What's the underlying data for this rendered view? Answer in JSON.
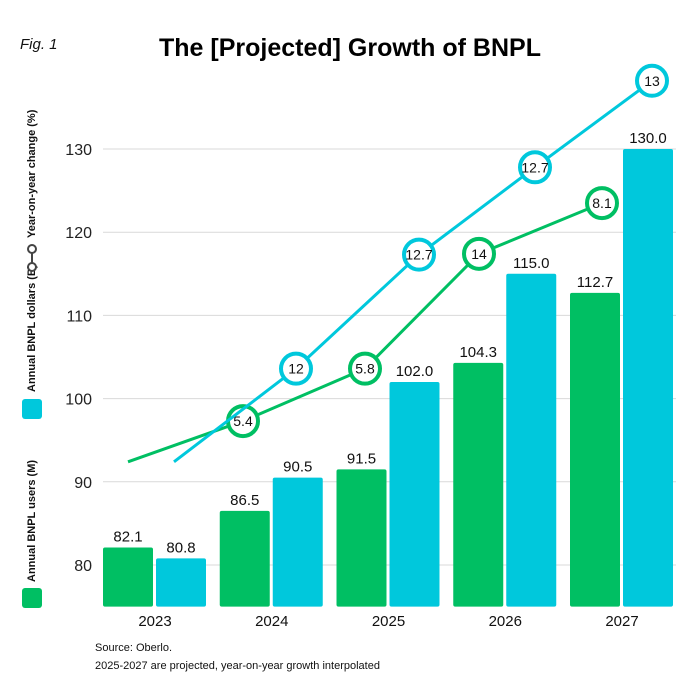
{
  "fig_label": "Fig. 1",
  "legend": {
    "users": "Annual BNPL users (M)",
    "dollars": "Annual BNPL dollars (B)",
    "yoy": "Year-on-year change (%)"
  },
  "colors": {
    "users": "#00bf63",
    "dollars": "#00c8dc",
    "grid": "#d9d9d9"
  },
  "footer": {
    "source": "Source: Oberlo.",
    "note": "2025-2027 are projected, year-on-year growth interpolated"
  },
  "chart_data": {
    "type": "bar",
    "title": "The [Projected] Growth of BNPL",
    "categories": [
      "2023",
      "2024",
      "2025",
      "2026",
      "2027"
    ],
    "ylim": [
      75,
      135
    ],
    "yticks": [
      "80",
      "90",
      "100",
      "110",
      "120",
      "130"
    ],
    "grid": true,
    "legend_placement": "left",
    "series": [
      {
        "name": "Annual BNPL users (M)",
        "values": [
          82.1,
          86.5,
          91.5,
          104.3,
          112.7
        ],
        "labels": [
          "82.1",
          "86.5",
          "91.5",
          "104.3",
          "112.7"
        ]
      },
      {
        "name": "Annual BNPL dollars (B)",
        "values": [
          80.8,
          90.5,
          102.0,
          115.0,
          130.0
        ],
        "labels": [
          "80.8",
          "90.5",
          "102.0",
          "115.0",
          "130.0"
        ]
      }
    ],
    "yoy_lines": [
      {
        "series": "Annual BNPL users (M)",
        "labels": [
          "5.4",
          "5.8",
          "14",
          "8.1"
        ]
      },
      {
        "series": "Annual BNPL dollars (B)",
        "labels": [
          "12",
          "12.7",
          "12.7",
          "13"
        ]
      }
    ]
  }
}
